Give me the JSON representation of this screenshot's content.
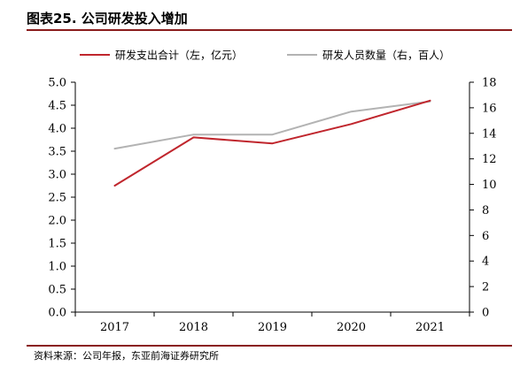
{
  "figure_title": "图表25. 公司研发投入增加",
  "source_note": "资料来源：公司年报，东亚前海证券研究所",
  "colors": {
    "series_primary": "#c0262d",
    "series_secondary": "#b3b3b3",
    "axis": "#000000",
    "rule": "#8a1c1c"
  },
  "chart_data": {
    "type": "line",
    "title": "",
    "xlabel": "",
    "ylabel": "",
    "categories": [
      "2017",
      "2018",
      "2019",
      "2020",
      "2021"
    ],
    "y_left": {
      "lim": [
        0,
        5
      ],
      "ticks": [
        "0.0",
        "0.5",
        "1.0",
        "1.5",
        "2.0",
        "2.5",
        "3.0",
        "3.5",
        "4.0",
        "4.5",
        "5.0"
      ]
    },
    "y_right": {
      "lim": [
        0,
        18
      ],
      "ticks": [
        "0",
        "2",
        "4",
        "6",
        "8",
        "10",
        "12",
        "14",
        "16",
        "18"
      ]
    },
    "grid": false,
    "legend_position": "top",
    "series": [
      {
        "name": "研发支出合计（左，亿元）",
        "axis": "left",
        "color": "#c0262d",
        "values": [
          2.75,
          3.8,
          3.67,
          4.09,
          4.6
        ]
      },
      {
        "name": "研发人员数量（右，百人）",
        "axis": "right",
        "color": "#b3b3b3",
        "values": [
          12.8,
          13.9,
          13.9,
          15.7,
          16.5
        ]
      }
    ]
  }
}
